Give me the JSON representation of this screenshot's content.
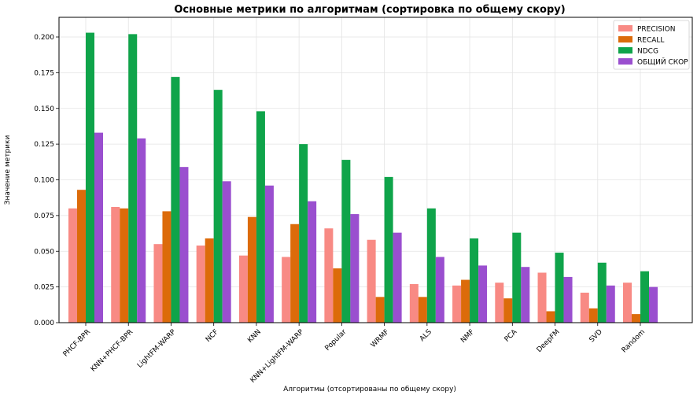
{
  "chart_data": {
    "type": "bar",
    "title": "Основные метрики по алгоритмам (сортировка по общему скору)",
    "xlabel": "Алгоритмы (отсортированы по общему скору)",
    "ylabel": "Значение метрики",
    "ylim": [
      0,
      0.2125
    ],
    "yticks": [
      "0.000",
      "0.025",
      "0.050",
      "0.075",
      "0.100",
      "0.125",
      "0.150",
      "0.175",
      "0.200"
    ],
    "ytick_values": [
      0,
      0.025,
      0.05,
      0.075,
      0.1,
      0.125,
      0.15,
      0.175,
      0.2
    ],
    "grid": true,
    "legend_position": "top-right",
    "categories": [
      "PHCF-BPR",
      "KNN+PHCF-BPR",
      "LightFM-WARP",
      "NCF",
      "KNN",
      "KNN+LightFM-WARP",
      "Popular",
      "WRMF",
      "ALS",
      "NMF",
      "PCA",
      "DeepFM",
      "SVD",
      "Random"
    ],
    "series": [
      {
        "name": "PRECISION",
        "color": "#f88a84",
        "values": [
          0.08,
          0.081,
          0.055,
          0.054,
          0.047,
          0.046,
          0.066,
          0.058,
          0.027,
          0.026,
          0.028,
          0.035,
          0.021,
          0.028
        ]
      },
      {
        "name": "RECALL",
        "color": "#dc6b0a",
        "values": [
          0.093,
          0.08,
          0.078,
          0.059,
          0.074,
          0.069,
          0.038,
          0.018,
          0.018,
          0.03,
          0.017,
          0.008,
          0.01,
          0.006
        ]
      },
      {
        "name": "NDCG",
        "color": "#0fa44a",
        "values": [
          0.203,
          0.202,
          0.172,
          0.163,
          0.148,
          0.125,
          0.114,
          0.102,
          0.08,
          0.059,
          0.063,
          0.049,
          0.042,
          0.036
        ]
      },
      {
        "name": "ОБЩИЙ СКОР",
        "color": "#9a4fcf",
        "values": [
          0.133,
          0.129,
          0.109,
          0.099,
          0.096,
          0.085,
          0.076,
          0.063,
          0.046,
          0.04,
          0.039,
          0.032,
          0.026,
          0.025
        ]
      }
    ]
  }
}
